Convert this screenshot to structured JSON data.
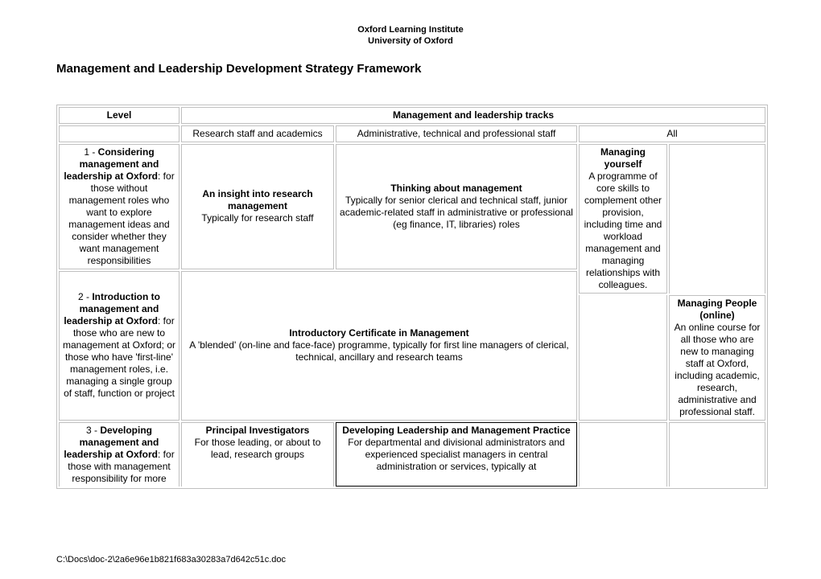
{
  "header": {
    "line1": "Oxford Learning Institute",
    "line2": "University of Oxford"
  },
  "title": "Management and Leadership Development Strategy Framework",
  "table": {
    "head": {
      "level": "Level",
      "tracks": "Management and leadership tracks"
    },
    "subhead": {
      "a": "Research staff and academics",
      "b": "Administrative, technical and professional staff",
      "c": "All"
    },
    "rows": {
      "r1": {
        "level_num": "1 - ",
        "level_bold": "Considering management and leadership at Oxford",
        "level_rest": ": for those without management roles who want to explore management ideas and consider whether they want management responsibilities",
        "a_bold": "An insight into research management",
        "a_rest": "Typically for research staff",
        "b_bold": "Thinking about management",
        "b_rest": "Typically for senior clerical and technical staff, junior academic-related staff in administrative or professional (eg finance, IT, libraries) roles",
        "c_bold": "Managing yourself",
        "c_rest": "A programme of core skills to complement other provision, including time and workload management and managing relationships with colleagues."
      },
      "r2": {
        "level_num": "2 - ",
        "level_bold": "Introduction to management and leadership at Oxford",
        "level_rest": ": for those who are new to management at Oxford; or those who have 'first-line' management roles, i.e. managing a single group of staff, function or project",
        "ab_bold": "Introductory Certificate in Management",
        "ab_rest": "A 'blended' (on-line and face-face) programme, typically for first line managers of clerical, technical, ancillary and research teams",
        "d_bold": "Managing People (online)",
        "d_rest": "An online course for all those who are new to managing staff at Oxford, including academic, research, administrative and professional staff."
      },
      "r3": {
        "level_num": "3 - ",
        "level_bold": "Developing management and leadership at Oxford",
        "level_rest": ": for those with management responsibility for more",
        "a_bold": "Principal Investigators",
        "a_rest": "For those leading, or about to lead, research groups",
        "b_bold": "Developing Leadership and Management Practice",
        "b_rest": "For departmental and divisional administrators and experienced specialist managers in central administration or services, typically at"
      }
    }
  },
  "footer": "C:\\Docs\\doc-2\\2a6e96e1b821f683a30283a7d642c51c.doc"
}
